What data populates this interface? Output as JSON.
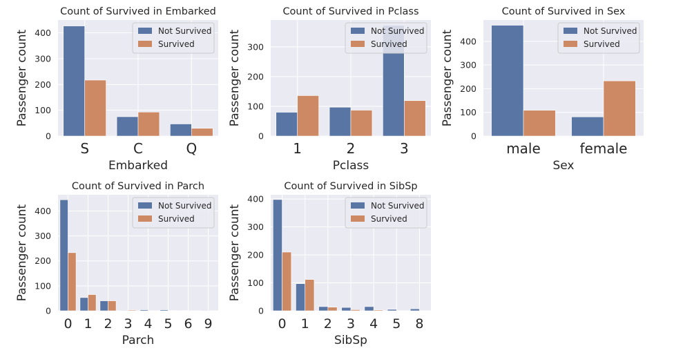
{
  "colors": {
    "not_survived": "#5875a4",
    "survived": "#cc8963",
    "plot_bg": "#eaeaf2",
    "grid": "#ffffff",
    "legend_bg": "#eaeaf2",
    "legend_border": "#cccccc"
  },
  "chart_data": [
    {
      "type": "bar",
      "title": "Count of Survived in Embarked",
      "xlabel": "Embarked",
      "ylabel": "Passenger count",
      "categories": [
        "S",
        "C",
        "Q"
      ],
      "series": [
        {
          "name": "Not Survived",
          "values": [
            427,
            75,
            47
          ]
        },
        {
          "name": "Survived",
          "values": [
            217,
            93,
            30
          ]
        }
      ],
      "ylim": [
        0,
        450
      ],
      "yticks": [
        0,
        100,
        200,
        300,
        400
      ],
      "legend": "top-right",
      "grid": true
    },
    {
      "type": "bar",
      "title": "Count of Survived in Pclass",
      "xlabel": "Pclass",
      "ylabel": "Passenger count",
      "categories": [
        "1",
        "2",
        "3"
      ],
      "series": [
        {
          "name": "Not Survived",
          "values": [
            80,
            97,
            372
          ]
        },
        {
          "name": "Survived",
          "values": [
            136,
            87,
            119
          ]
        }
      ],
      "ylim": [
        0,
        390
      ],
      "yticks": [
        0,
        100,
        200,
        300
      ],
      "legend": "top-right",
      "grid": true
    },
    {
      "type": "bar",
      "title": "Count of Survived in Sex",
      "xlabel": "Sex",
      "ylabel": "Passenger count",
      "categories": [
        "male",
        "female"
      ],
      "series": [
        {
          "name": "Not Survived",
          "values": [
            468,
            81
          ]
        },
        {
          "name": "Survived",
          "values": [
            109,
            233
          ]
        }
      ],
      "ylim": [
        0,
        490
      ],
      "yticks": [
        0,
        100,
        200,
        300,
        400
      ],
      "legend": "top-right",
      "grid": true
    },
    {
      "type": "bar",
      "title": "Count of Survived in Parch",
      "xlabel": "Parch",
      "ylabel": "Passenger count",
      "categories": [
        "0",
        "1",
        "2",
        "3",
        "4",
        "5",
        "6",
        "9"
      ],
      "series": [
        {
          "name": "Not Survived",
          "values": [
            445,
            53,
            40,
            2,
            4,
            4,
            1,
            2
          ]
        },
        {
          "name": "Survived",
          "values": [
            233,
            65,
            40,
            3,
            0,
            1,
            0,
            0
          ]
        }
      ],
      "ylim": [
        0,
        465
      ],
      "yticks": [
        0,
        100,
        200,
        300,
        400
      ],
      "legend": "top-right",
      "grid": true
    },
    {
      "type": "bar",
      "title": "Count of Survived in SibSp",
      "xlabel": "SibSp",
      "ylabel": "Passenger count",
      "categories": [
        "0",
        "1",
        "2",
        "3",
        "4",
        "5",
        "8"
      ],
      "series": [
        {
          "name": "Not Survived",
          "values": [
            398,
            97,
            15,
            12,
            15,
            5,
            7
          ]
        },
        {
          "name": "Survived",
          "values": [
            210,
            112,
            13,
            4,
            3,
            0,
            0
          ]
        }
      ],
      "ylim": [
        0,
        415
      ],
      "yticks": [
        0,
        100,
        200,
        300,
        400
      ],
      "legend": "top-right",
      "grid": true
    }
  ]
}
